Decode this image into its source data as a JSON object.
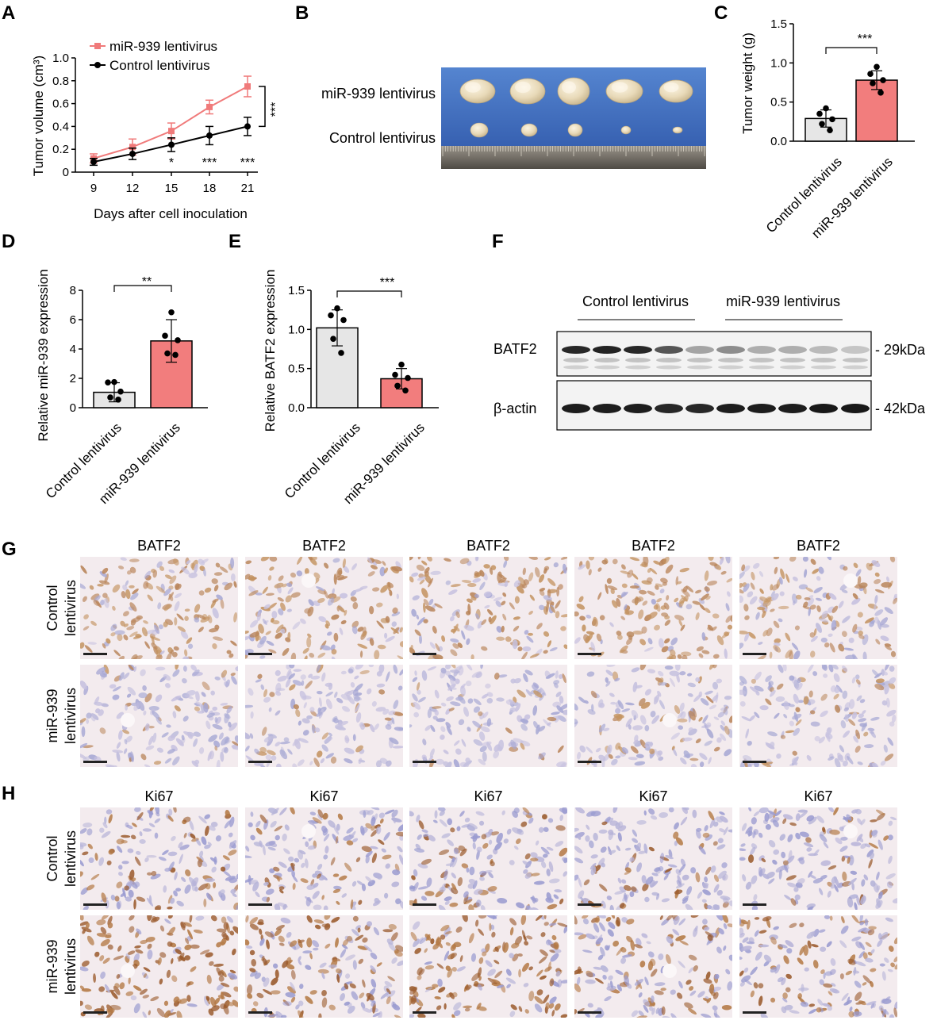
{
  "panel_letters": [
    "A",
    "B",
    "C",
    "D",
    "E",
    "F",
    "G",
    "H"
  ],
  "colors": {
    "mir_line": "#f07a7a",
    "ctrl_line": "#000000",
    "mir_bar": "#f27d7d",
    "ctrl_bar": "#e6e6e6",
    "photo_bg": "#3f68b8",
    "ihc_stain_brown": "#a8703e",
    "ihc_bg": "#f3ebee",
    "ihc_hematoxylin": "#8d90c8"
  },
  "panel_b": {
    "row_labels": [
      "miR-939 lentivirus",
      "Control lentivirus"
    ],
    "tumor_counts": [
      5,
      5
    ]
  },
  "panel_f": {
    "group_labels": [
      "Control lentivirus",
      "miR-939 lentivirus"
    ],
    "rows": [
      {
        "protein": "BATF2",
        "size": "29kDa",
        "intensities": [
          0.9,
          0.92,
          0.9,
          0.7,
          0.35,
          0.45,
          0.3,
          0.3,
          0.25,
          0.2
        ]
      },
      {
        "protein": "β-actin",
        "size": "42kDa",
        "intensities": [
          0.95,
          0.95,
          0.95,
          0.9,
          0.9,
          0.95,
          0.95,
          0.95,
          0.97,
          0.97
        ]
      }
    ]
  },
  "panel_g": {
    "column_labels": [
      "BATF2",
      "BATF2",
      "BATF2",
      "BATF2",
      "BATF2"
    ],
    "row_labels": [
      [
        "Control",
        "lentivirus"
      ],
      [
        "miR-939",
        "lentivirus"
      ]
    ],
    "stain_levels": [
      [
        0.75,
        0.7,
        0.7,
        0.8,
        0.6
      ],
      [
        0.15,
        0.15,
        0.15,
        0.2,
        0.12
      ]
    ]
  },
  "panel_h": {
    "column_labels": [
      "Ki67",
      "Ki67",
      "Ki67",
      "Ki67",
      "Ki67"
    ],
    "row_labels": [
      [
        "Control",
        "lentivirus"
      ],
      [
        "miR-939",
        "lentivirus"
      ]
    ],
    "stain_levels": [
      [
        0.35,
        0.25,
        0.3,
        0.25,
        0.15
      ],
      [
        0.85,
        0.55,
        0.75,
        0.5,
        0.4
      ]
    ]
  },
  "chart_data": [
    {
      "id": "A",
      "type": "line",
      "xlabel": "Days after cell inoculation",
      "ylabel": "Tumor volume (cm³)",
      "x": [
        9,
        12,
        15,
        18,
        21
      ],
      "ylim": [
        0,
        1.0
      ],
      "yticks": [
        "0",
        "0.2",
        "0.4",
        "0.6",
        "0.8",
        "1.0"
      ],
      "series": [
        {
          "name": "miR-939 lentivirus",
          "values": [
            0.12,
            0.22,
            0.36,
            0.57,
            0.75
          ],
          "errors": [
            0.04,
            0.07,
            0.07,
            0.06,
            0.09
          ]
        },
        {
          "name": "Control lentivirus",
          "values": [
            0.09,
            0.16,
            0.24,
            0.32,
            0.4
          ],
          "errors": [
            0.03,
            0.05,
            0.06,
            0.08,
            0.08
          ]
        }
      ],
      "significance": [
        {
          "x": 15,
          "label": "*"
        },
        {
          "x": 18,
          "label": "***"
        },
        {
          "x": 21,
          "label": "***"
        }
      ],
      "bracket_label": "***",
      "legend_position": "top-left"
    },
    {
      "id": "C",
      "type": "bar",
      "ylabel": "Tumor weight (g)",
      "categories": [
        "Control lentivirus",
        "miR-939 lentivirus"
      ],
      "values": [
        0.29,
        0.78
      ],
      "errors": [
        0.11,
        0.12
      ],
      "points": [
        [
          0.42,
          0.35,
          0.28,
          0.22,
          0.14
        ],
        [
          0.95,
          0.86,
          0.78,
          0.74,
          0.62
        ]
      ],
      "ylim": [
        0,
        1.5
      ],
      "yticks": [
        "0.0",
        "0.5",
        "1.0",
        "1.5"
      ],
      "significance": "***"
    },
    {
      "id": "D",
      "type": "bar",
      "ylabel": "Relative miR-939 expression",
      "categories": [
        "Control lentivirus",
        "miR-939 lentivirus"
      ],
      "values": [
        1.05,
        4.55
      ],
      "errors": [
        0.65,
        1.45
      ],
      "points": [
        [
          1.75,
          1.72,
          1.1,
          0.7,
          0.55
        ],
        [
          6.5,
          4.9,
          4.6,
          3.7,
          3.6
        ]
      ],
      "ylim": [
        0,
        8
      ],
      "yticks": [
        "0",
        "2",
        "4",
        "6",
        "8"
      ],
      "significance": "**"
    },
    {
      "id": "E",
      "type": "bar",
      "ylabel": "Relative BATF2 expression",
      "categories": [
        "Control lentivirus",
        "miR-939 lentivirus"
      ],
      "values": [
        1.02,
        0.37
      ],
      "errors": [
        0.23,
        0.13
      ],
      "points": [
        [
          1.27,
          1.18,
          1.12,
          0.88,
          0.7
        ],
        [
          0.55,
          0.42,
          0.38,
          0.28,
          0.22
        ]
      ],
      "ylim": [
        0,
        1.5
      ],
      "yticks": [
        "0.0",
        "0.5",
        "1.0",
        "1.5"
      ],
      "significance": "***"
    }
  ]
}
